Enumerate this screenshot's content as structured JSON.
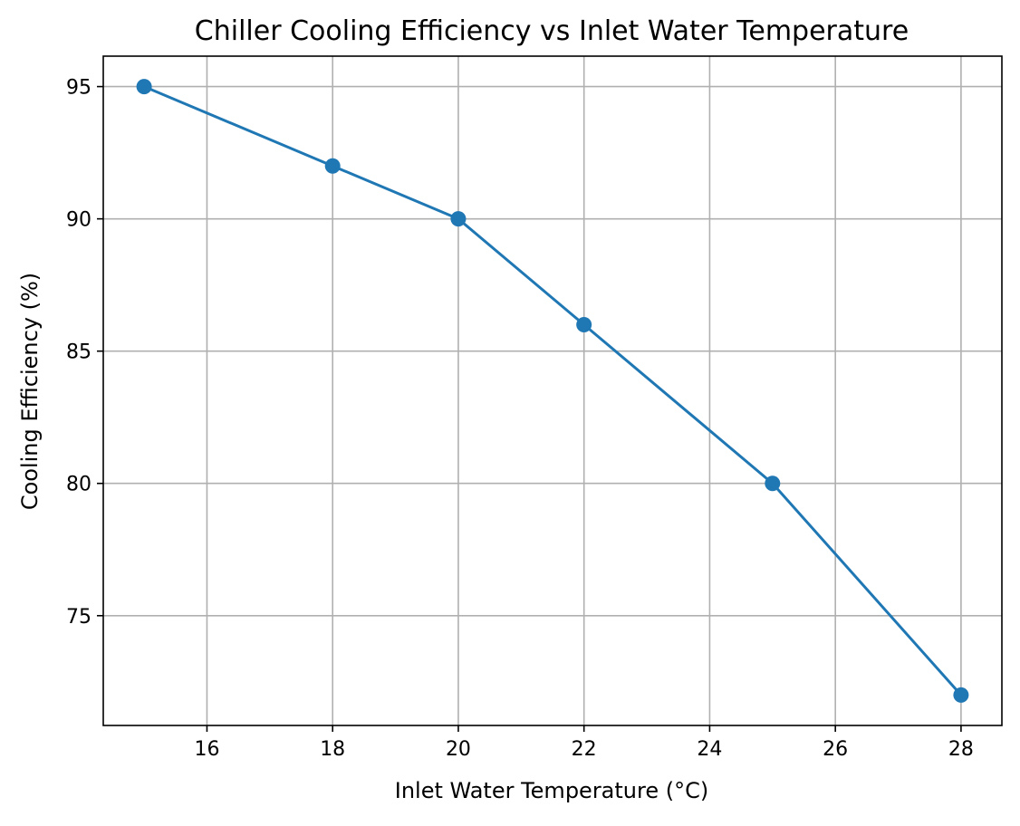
{
  "chart_data": {
    "type": "line",
    "title": "Chiller Cooling Efficiency vs Inlet Water Temperature",
    "xlabel": "Inlet Water Temperature (°C)",
    "ylabel": "Cooling Efficiency (%)",
    "x": [
      15,
      18,
      20,
      22,
      25,
      28
    ],
    "series": [
      {
        "values": [
          95,
          92,
          90,
          86,
          80,
          72
        ]
      }
    ],
    "xlim": [
      14.35,
      28.65
    ],
    "ylim": [
      70.85,
      96.15
    ],
    "x_ticks": [
      "16",
      "18",
      "20",
      "22",
      "24",
      "26",
      "28"
    ],
    "y_ticks": [
      "75",
      "80",
      "85",
      "90",
      "95"
    ],
    "grid": true,
    "colors": {
      "line": "#1f77b4",
      "grid": "#b0b0b0",
      "axes": "#000000"
    },
    "marker": "circle"
  }
}
